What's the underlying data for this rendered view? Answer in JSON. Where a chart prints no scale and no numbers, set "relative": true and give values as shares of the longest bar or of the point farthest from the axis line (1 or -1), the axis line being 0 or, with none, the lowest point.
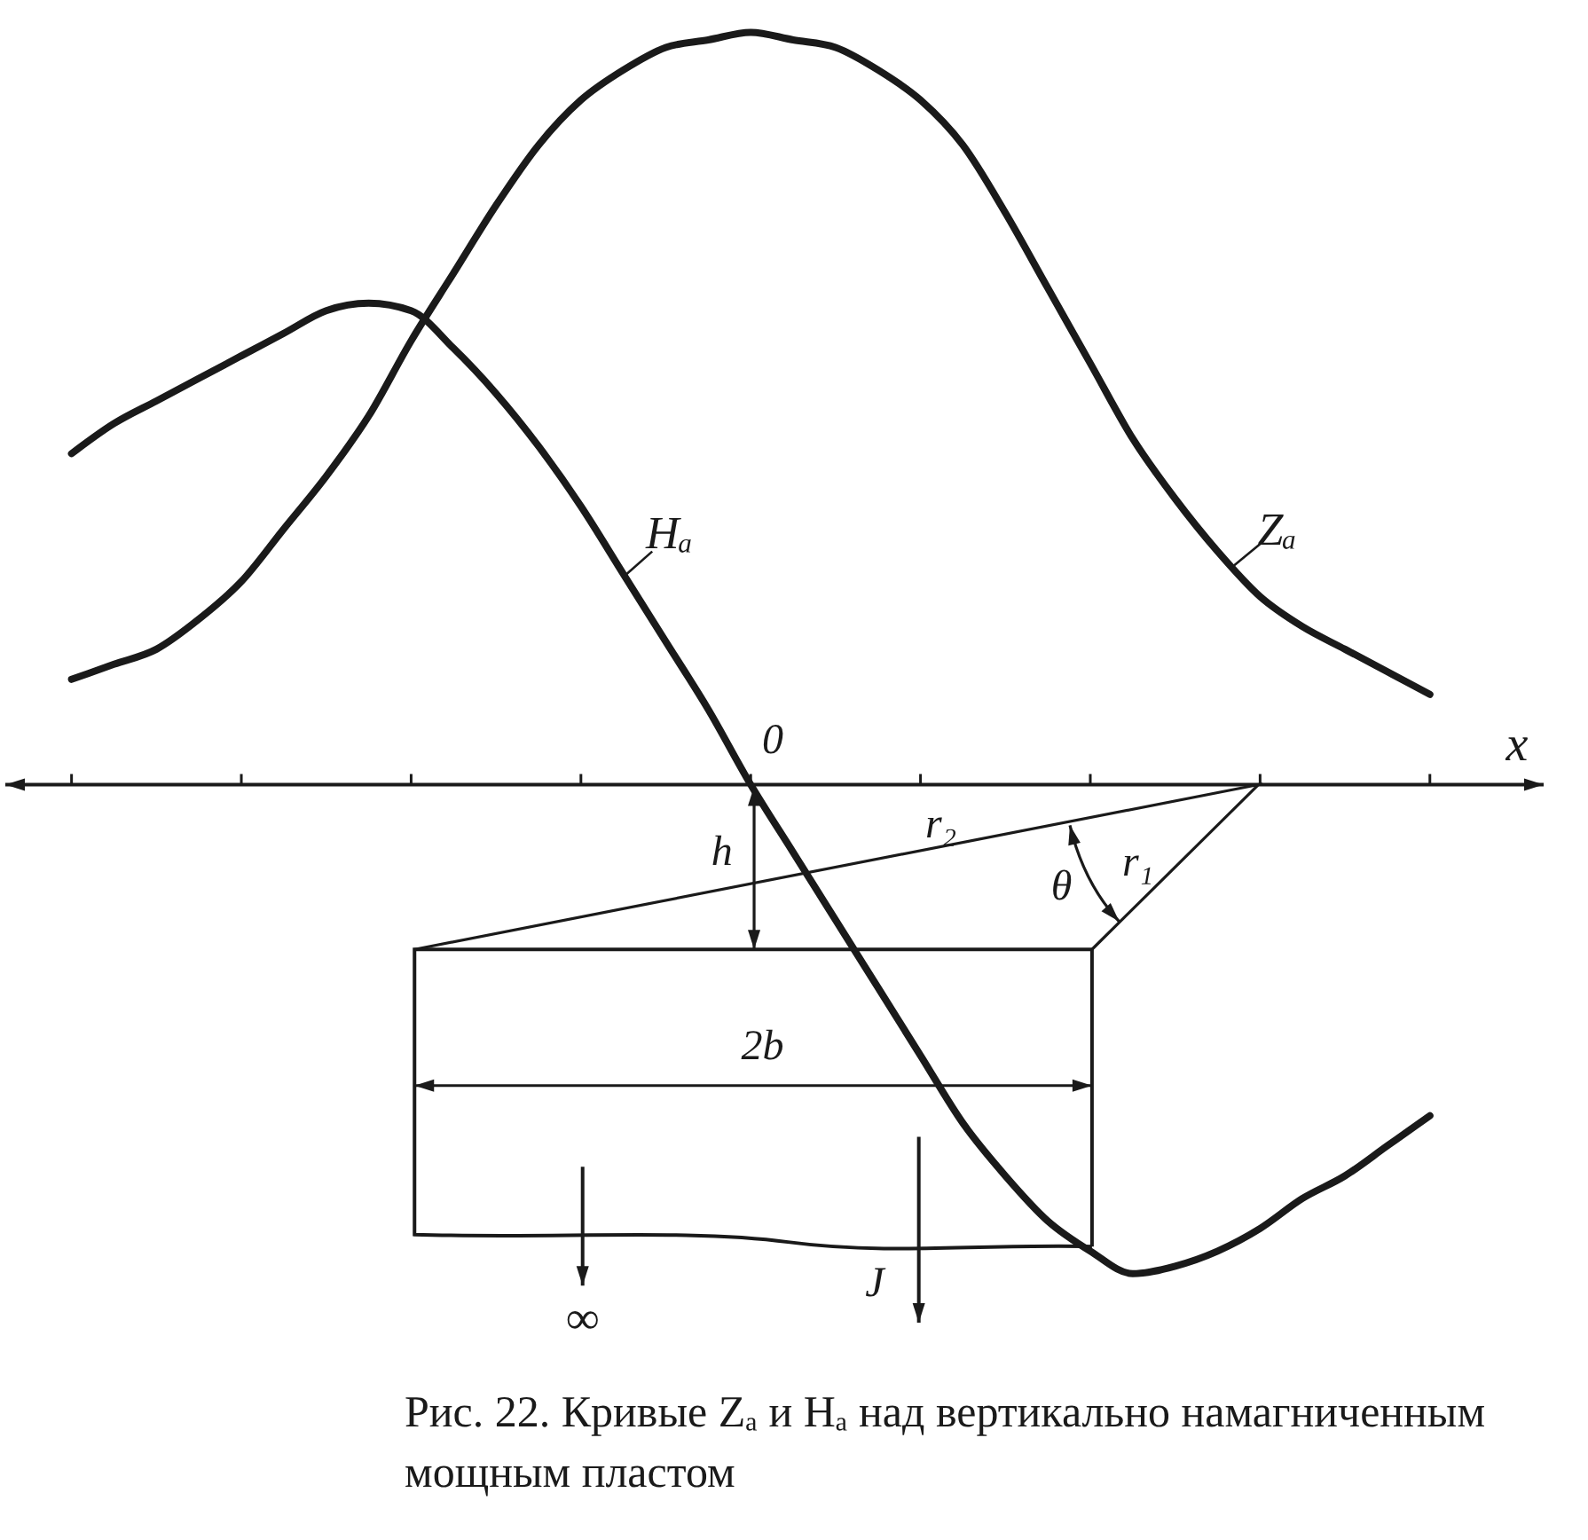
{
  "chart_data": {
    "type": "line",
    "relative": true,
    "xlabel": "x",
    "marker": "none",
    "line_style": "solid",
    "legend": "center",
    "categories": [
      null,
      null,
      null,
      null,
      null,
      null,
      null,
      null,
      null,
      null,
      null,
      null,
      null,
      null,
      null,
      null,
      null,
      null,
      null,
      null,
      null,
      null,
      null,
      null,
      null,
      null,
      null,
      null,
      null,
      null,
      null,
      null,
      null
    ],
    "series": [
      {
        "name": "Zₐ",
        "color": "#1a1a1a",
        "values": [
          0.14,
          0.16,
          0.18,
          0.22,
          0.27,
          0.34,
          0.41,
          0.49,
          0.59,
          0.68,
          0.77,
          0.85,
          0.91,
          0.95,
          0.98,
          0.99,
          1,
          0.99,
          0.98,
          0.95,
          0.91,
          0.85,
          0.76,
          0.66,
          0.56,
          0.46,
          0.38,
          0.31,
          0.25,
          0.21,
          0.18,
          0.15,
          0.12
        ]
      },
      {
        "name": "Hₐ",
        "color": "#1a1a1a",
        "values": [
          0.44,
          0.48,
          0.51,
          0.54,
          0.57,
          0.6,
          0.63,
          0.64,
          0.63,
          0.58,
          0.52,
          0.45,
          0.37,
          0.28,
          0.19,
          0.1,
          0,
          -0.09,
          -0.18,
          -0.27,
          -0.36,
          -0.45,
          -0.52,
          -0.58,
          -0.62,
          -0.65,
          -0.64,
          -0.62,
          -0.59,
          -0.55,
          -0.52,
          -0.48,
          -0.44
        ]
      }
    ],
    "annotations": [
      "h",
      "r₂",
      "r₁",
      "θ",
      "2b",
      "∞",
      "J",
      "Рис. 22. Кривые Zₐ и Hₐ над вертикально намагниченным мощным пластом",
      "0"
    ]
  }
}
